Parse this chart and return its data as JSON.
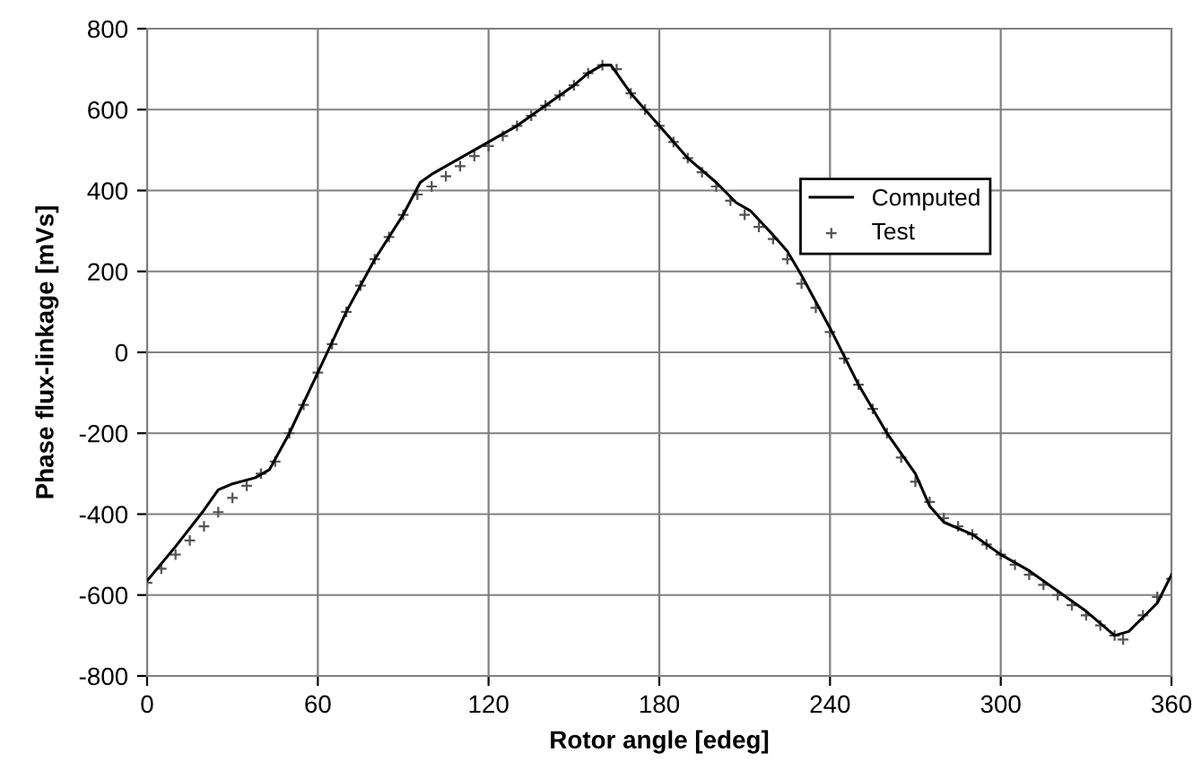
{
  "chart_data": {
    "type": "line",
    "xlabel": "Rotor angle [edeg]",
    "ylabel": "Phase flux-linkage [mVs]",
    "xlim": [
      0,
      360
    ],
    "xticks": [
      0,
      60,
      120,
      180,
      240,
      300,
      360
    ],
    "ylim": [
      -800,
      800
    ],
    "yticks": [
      -800,
      -600,
      -400,
      -200,
      0,
      200,
      400,
      600,
      800
    ],
    "grid": true,
    "legend": "right",
    "series": [
      {
        "name": "Computed",
        "color": "#000000",
        "marker": "none",
        "line_style": "solid",
        "x": [
          0,
          10,
          20,
          25,
          30,
          38,
          43,
          50,
          60,
          70,
          80,
          90,
          96,
          100,
          110,
          120,
          130,
          140,
          150,
          155,
          160,
          163,
          170,
          180,
          190,
          200,
          207,
          212,
          220,
          225,
          230,
          240,
          250,
          260,
          270,
          275,
          280,
          290,
          300,
          310,
          320,
          330,
          340,
          345,
          355,
          360
        ],
        "values": [
          -565,
          -480,
          -390,
          -340,
          -325,
          -310,
          -290,
          -200,
          -50,
          100,
          230,
          340,
          420,
          440,
          480,
          520,
          560,
          610,
          660,
          690,
          710,
          710,
          640,
          560,
          480,
          420,
          370,
          350,
          290,
          250,
          190,
          60,
          -80,
          -200,
          -300,
          -380,
          -420,
          -450,
          -500,
          -540,
          -590,
          -640,
          -700,
          -690,
          -620,
          -550
        ]
      },
      {
        "name": "Test",
        "type": "scatter",
        "color": "#555555",
        "marker": "cross",
        "x": [
          0,
          5,
          10,
          15,
          20,
          25,
          30,
          35,
          40,
          45,
          50,
          55,
          60,
          65,
          70,
          75,
          80,
          85,
          90,
          95,
          100,
          105,
          110,
          115,
          120,
          125,
          130,
          135,
          140,
          145,
          150,
          155,
          160,
          165,
          170,
          175,
          180,
          185,
          190,
          195,
          200,
          205,
          210,
          215,
          220,
          225,
          230,
          235,
          240,
          245,
          250,
          255,
          260,
          265,
          270,
          275,
          280,
          285,
          290,
          295,
          300,
          305,
          310,
          315,
          320,
          325,
          330,
          335,
          340,
          343,
          350,
          355,
          360
        ],
        "values": [
          -570,
          -535,
          -500,
          -465,
          -430,
          -395,
          -360,
          -330,
          -300,
          -270,
          -200,
          -130,
          -50,
          20,
          100,
          165,
          230,
          285,
          340,
          390,
          410,
          435,
          460,
          485,
          510,
          535,
          560,
          585,
          610,
          635,
          660,
          690,
          710,
          700,
          640,
          600,
          560,
          520,
          480,
          445,
          410,
          375,
          340,
          310,
          280,
          230,
          170,
          110,
          50,
          -15,
          -80,
          -140,
          -200,
          -260,
          -320,
          -370,
          -410,
          -430,
          -450,
          -475,
          -500,
          -525,
          -550,
          -575,
          -600,
          -625,
          -650,
          -675,
          -700,
          -710,
          -650,
          -605,
          -560
        ]
      }
    ]
  }
}
